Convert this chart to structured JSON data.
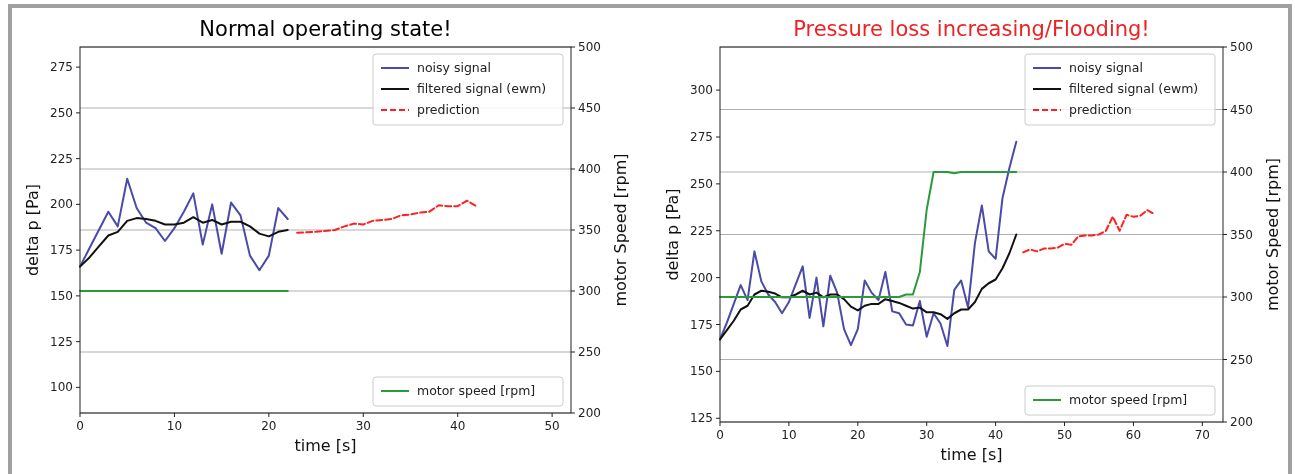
{
  "chart_data": [
    {
      "type": "line",
      "title": "Normal operating state!",
      "xlabel": "time [s]",
      "ylabel": "delta p [Pa]",
      "y2label": "motor Speed [rpm]",
      "xlim": [
        0,
        52
      ],
      "xticks": [
        0,
        10,
        20,
        30,
        40,
        50
      ],
      "ylim": [
        86,
        286
      ],
      "yticks": [
        100,
        125,
        150,
        175,
        200,
        225,
        250,
        275
      ],
      "y2lim": [
        200,
        500
      ],
      "y2ticks": [
        200,
        250,
        300,
        350,
        400,
        450,
        500
      ],
      "grid": "y2",
      "legend": "top right",
      "series": [
        {
          "name": "noisy signal",
          "color": "#4a4aa8",
          "x": [
            0,
            1,
            2,
            3,
            4,
            5,
            6,
            7,
            8,
            9,
            10,
            11,
            12,
            13,
            14,
            15,
            16,
            17,
            18,
            19,
            20,
            21,
            22
          ],
          "values": [
            166,
            176,
            186,
            196,
            188,
            214,
            198,
            190,
            187,
            180,
            187,
            196,
            206,
            178,
            200,
            173,
            201,
            194,
            172,
            164,
            172,
            198,
            192
          ]
        },
        {
          "name": "filtered signal (ewm)",
          "color": "#111111",
          "x": [
            0,
            1,
            2,
            3,
            4,
            5,
            6,
            7,
            8,
            9,
            10,
            11,
            12,
            13,
            14,
            15,
            16,
            17,
            18,
            19,
            20,
            21,
            22
          ],
          "values": [
            166,
            171,
            177,
            183,
            185,
            191,
            192.5,
            192,
            191,
            189,
            189,
            190,
            193,
            190,
            191.5,
            189,
            190.5,
            190.5,
            188,
            184,
            182.5,
            185,
            186
          ]
        },
        {
          "name": "prediction",
          "color": "#ff2020",
          "line_style": "dashed",
          "x": [
            23,
            25,
            27,
            28,
            29,
            30,
            31,
            32,
            33,
            34,
            35,
            36,
            37,
            38,
            39,
            40,
            41,
            42
          ],
          "values": [
            184.5,
            185,
            186,
            188,
            189.5,
            189,
            191,
            191.5,
            192,
            194,
            194.5,
            195.5,
            196,
            199.5,
            199,
            199,
            202,
            199
          ]
        },
        {
          "name": "motor speed [rpm]",
          "color": "#2a9a3a",
          "axis": "y2",
          "x": [
            0,
            22
          ],
          "values": [
            300,
            300
          ]
        }
      ]
    },
    {
      "type": "line",
      "title": "Pressure loss increasing/Flooding!",
      "xlabel": "time [s]",
      "ylabel": "delta p [Pa]",
      "y2label": "motor Speed [rpm]",
      "xlim": [
        0,
        73
      ],
      "xticks": [
        0,
        10,
        20,
        30,
        40,
        50,
        60,
        70
      ],
      "ylim": [
        123,
        323
      ],
      "yticks": [
        125,
        150,
        175,
        200,
        225,
        250,
        275,
        300
      ],
      "y2lim": [
        200,
        500
      ],
      "y2ticks": [
        200,
        250,
        300,
        350,
        400,
        450,
        500
      ],
      "grid": "y2",
      "legend": "top right",
      "series": [
        {
          "name": "noisy signal",
          "color": "#4a4aa8",
          "x": [
            0,
            1,
            2,
            3,
            4,
            5,
            6,
            7,
            8,
            9,
            10,
            11,
            12,
            13,
            14,
            15,
            16,
            17,
            18,
            19,
            20,
            21,
            22,
            23,
            24,
            25,
            26,
            27,
            28,
            29,
            30,
            31,
            32,
            33,
            34,
            35,
            36,
            37,
            38,
            39,
            40,
            41,
            42,
            43
          ],
          "values": [
            167,
            176,
            186,
            196,
            188,
            214,
            198,
            191,
            187,
            181,
            187,
            196.5,
            206,
            178.5,
            200,
            174,
            201,
            192,
            172.5,
            164,
            172.5,
            198.5,
            192,
            188,
            203,
            182,
            181,
            175,
            174.5,
            187.5,
            168.5,
            181,
            175.5,
            163.5,
            193.5,
            198.5,
            184,
            218.5,
            238.5,
            214,
            210,
            242.5,
            258.5,
            272.5
          ]
        },
        {
          "name": "filtered signal (ewm)",
          "color": "#111111",
          "x": [
            0,
            1,
            2,
            3,
            4,
            5,
            6,
            7,
            8,
            9,
            10,
            11,
            12,
            13,
            14,
            15,
            16,
            17,
            18,
            19,
            20,
            21,
            22,
            23,
            24,
            25,
            26,
            27,
            28,
            29,
            30,
            31,
            32,
            33,
            34,
            35,
            36,
            37,
            38,
            39,
            40,
            41,
            42,
            43
          ],
          "values": [
            167,
            172,
            177,
            183,
            185,
            191,
            193,
            192.5,
            191.5,
            189.5,
            189.5,
            191,
            193,
            191,
            192,
            189.5,
            191,
            191,
            188.5,
            184.5,
            182.5,
            185,
            186,
            186,
            188.5,
            187.5,
            186.5,
            185,
            183.5,
            184,
            181.5,
            181.5,
            180.5,
            178,
            181,
            183,
            183,
            187,
            194,
            197,
            199,
            205,
            213,
            223
          ]
        },
        {
          "name": "prediction",
          "color": "#ff2020",
          "line_style": "dashed",
          "x": [
            44,
            45,
            46,
            47,
            48,
            49,
            50,
            51,
            52,
            53,
            54,
            55,
            56,
            57,
            58,
            59,
            60,
            61,
            62,
            63
          ],
          "values": [
            213.5,
            215,
            214,
            215.5,
            215.5,
            216,
            218,
            217.5,
            222,
            222.5,
            222.5,
            223,
            225,
            232.5,
            225,
            233.5,
            232.5,
            233,
            236,
            234
          ]
        },
        {
          "name": "motor speed [rpm]",
          "color": "#2a9a3a",
          "axis": "y2",
          "x": [
            0,
            26,
            27,
            28,
            29,
            30,
            31,
            33,
            34,
            35,
            43
          ],
          "values": [
            300,
            300,
            302,
            302,
            320,
            370,
            400,
            400,
            399,
            400,
            400
          ]
        }
      ]
    }
  ]
}
